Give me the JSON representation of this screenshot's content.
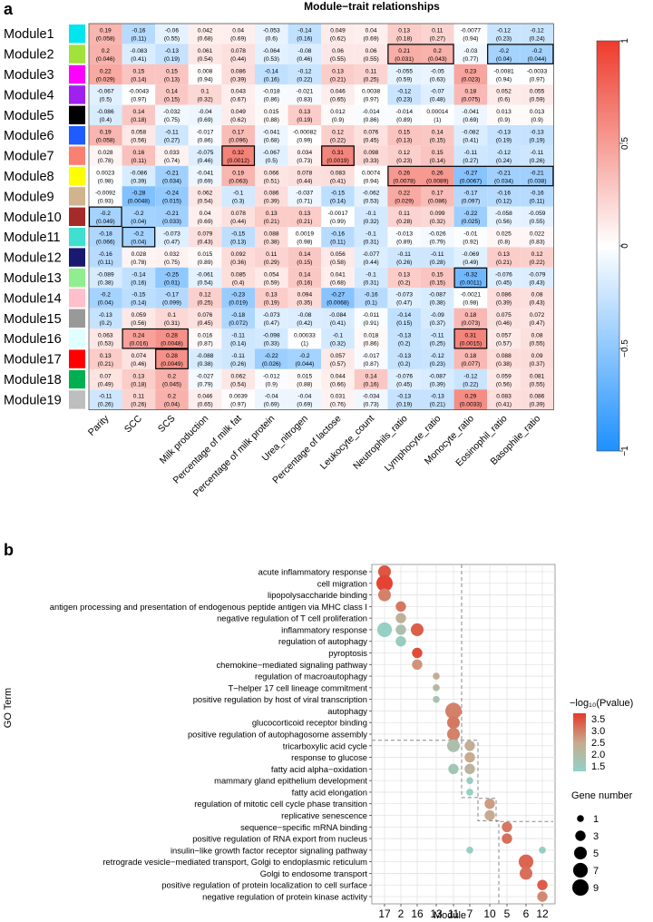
{
  "chart_data": [
    {
      "type": "heatmap",
      "panel_label": "a",
      "title": "Module−trait relationships",
      "rows": [
        "Module1",
        "Module2",
        "Module3",
        "Module4",
        "Module5",
        "Module6",
        "Module7",
        "Module8",
        "Module9",
        "Module10",
        "Module11",
        "Module12",
        "Module13",
        "Module14",
        "Module15",
        "Module16",
        "Module17",
        "Module18",
        "Module19"
      ],
      "row_colors": [
        "#00e5ee",
        "#a2e23a",
        "#ff00ff",
        "#a020f0",
        "#000000",
        "#1e5cff",
        "#fa8072",
        "#ffff00",
        "#d2b48c",
        "#a52a2a",
        "#40e0d0",
        "#191970",
        "#90ee90",
        "#ffc0cb",
        "#999999",
        "#e0ffff",
        "#ff0000",
        "#00b050",
        "#bebebe"
      ],
      "columns": [
        "Parity",
        "SCC",
        "SCS",
        "Milk production",
        "Percentage of milk fat",
        "Percentage of milk protein",
        "Urea_nitrogen",
        "Percentage of lactose",
        "Leukocyte_count",
        "Neutrophils_ratio",
        "Lymphocyte_ratio",
        "Monocyte_ratio",
        "Eosinophil_ratio",
        "Basophile_ratio"
      ],
      "values": [
        [
          "0.19",
          "-0.16",
          "-0.06",
          "0.042",
          "0.04",
          "-0.053",
          "-0.14",
          "0.049",
          "0.04",
          "0.13",
          "0.11",
          "-0.0077",
          "-0.12",
          "-0.12"
        ],
        [
          "0.2",
          "-0.083",
          "-0.13",
          "0.061",
          "0.078",
          "-0.064",
          "-0.08",
          "0.06",
          "0.06",
          "0.21",
          "0.2",
          "-0.03",
          "-0.2",
          "-0.2"
        ],
        [
          "0.22",
          "0.15",
          "0.15",
          "0.008",
          "0.086",
          "-0.14",
          "-0.12",
          "0.13",
          "0.11",
          "-0.055",
          "-0.05",
          "0.23",
          "-0.0081",
          "-0.0033"
        ],
        [
          "-0.067",
          "-0.0043",
          "0.14",
          "0.1",
          "0.043",
          "-0.018",
          "-0.021",
          "0.046",
          "0.0038",
          "-0.12",
          "-0.07",
          "0.18",
          "0.052",
          "0.055"
        ],
        [
          "-0.086",
          "0.14",
          "-0.032",
          "-0.04",
          "0.049",
          "0.015",
          "0.13",
          "0.012",
          "-0.014",
          "-0.014",
          "0.00014",
          "-0.041",
          "0.013",
          "0.013"
        ],
        [
          "0.19",
          "0.058",
          "-0.11",
          "-0.017",
          "0.17",
          "-0.041",
          "-0.00082",
          "0.12",
          "0.076",
          "0.15",
          "0.14",
          "-0.082",
          "-0.13",
          "-0.13"
        ],
        [
          "0.028",
          "0.16",
          "0.033",
          "-0.075",
          "0.32",
          "-0.067",
          "0.034",
          "0.31",
          "0.098",
          "0.12",
          "0.15",
          "-0.11",
          "-0.12",
          "-0.11"
        ],
        [
          "0.0023",
          "-0.086",
          "-0.21",
          "-0.041",
          "0.19",
          "0.066",
          "0.078",
          "0.083",
          "0.0074",
          "0.26",
          "0.26",
          "-0.27",
          "-0.21",
          "-0.21"
        ],
        [
          "-0.0092",
          "-0.28",
          "-0.24",
          "0.062",
          "-0.1",
          "0.086",
          "-0.037",
          "-0.15",
          "-0.062",
          "0.22",
          "0.17",
          "-0.17",
          "-0.16",
          "-0.16"
        ],
        [
          "-0.2",
          "-0.2",
          "-0.21",
          "0.04",
          "0.078",
          "0.13",
          "0.13",
          "-0.0017",
          "-0.1",
          "0.11",
          "0.099",
          "-0.22",
          "-0.058",
          "-0.059"
        ],
        [
          "-0.18",
          "-0.2",
          "-0.073",
          "0.079",
          "-0.15",
          "0.088",
          "0.0019",
          "-0.16",
          "-0.1",
          "-0.013",
          "-0.026",
          "-0.01",
          "0.025",
          "0.022"
        ],
        [
          "-0.16",
          "0.028",
          "0.032",
          "0.015",
          "0.092",
          "0.11",
          "0.14",
          "0.056",
          "-0.077",
          "-0.11",
          "-0.11",
          "-0.069",
          "0.13",
          "0.12"
        ],
        [
          "-0.089",
          "-0.14",
          "-0.25",
          "-0.061",
          "0.085",
          "0.054",
          "0.14",
          "0.041",
          "-0.1",
          "0.13",
          "0.15",
          "-0.32",
          "-0.076",
          "-0.079"
        ],
        [
          "-0.2",
          "-0.15",
          "-0.17",
          "0.12",
          "-0.23",
          "0.13",
          "0.094",
          "-0.27",
          "-0.16",
          "-0.073",
          "-0.087",
          "-0.0021",
          "0.086",
          "0.08"
        ],
        [
          "-0.13",
          "0.059",
          "0.1",
          "0.076",
          "-0.18",
          "-0.073",
          "-0.08",
          "-0.084",
          "-0.011",
          "-0.14",
          "-0.09",
          "0.18",
          "0.075",
          "0.072"
        ],
        [
          "0.063",
          "0.24",
          "0.28",
          "0.016",
          "-0.11",
          "-0.098",
          "0.00033",
          "-0.1",
          "0.018",
          "-0.13",
          "-0.11",
          "0.31",
          "0.057",
          "0.08"
        ],
        [
          "0.13",
          "0.074",
          "0.28",
          "-0.088",
          "-0.11",
          "-0.22",
          "-0.2",
          "0.057",
          "-0.017",
          "-0.13",
          "-0.12",
          "0.18",
          "0.088",
          "0.09"
        ],
        [
          "0.07",
          "0.13",
          "0.2",
          "-0.027",
          "0.062",
          "-0.012",
          "0.015",
          "0.044",
          "0.14",
          "-0.076",
          "-0.087",
          "-0.12",
          "0.059",
          "0.081"
        ],
        [
          "-0.11",
          "0.11",
          "0.2",
          "0.046",
          "0.0039",
          "-0.04",
          "-0.04",
          "0.031",
          "-0.034",
          "-0.13",
          "-0.13",
          "0.29",
          "0.083",
          "0.086"
        ]
      ],
      "pvalues": [
        [
          "(0.058)",
          "(0.11)",
          "(0.55)",
          "(0.68)",
          "(0.69)",
          "(0.6)",
          "(0.16)",
          "(0.62)",
          "(0.69)",
          "(0.18)",
          "(0.27)",
          "(0.94)",
          "(0.23)",
          "(0.24)"
        ],
        [
          "(0.046)",
          "(0.41)",
          "(0.19)",
          "(0.54)",
          "(0.44)",
          "(0.53)",
          "(0.46)",
          "(0.55)",
          "(0.55)",
          "(0.031)",
          "(0.043)",
          "(0.77)",
          "(0.04)",
          "(0.044)"
        ],
        [
          "(0.029)",
          "(0.14)",
          "(0.13)",
          "(0.94)",
          "(0.39)",
          "(0.16)",
          "(0.22)",
          "(0.21)",
          "(0.25)",
          "(0.59)",
          "(0.63)",
          "(0.023)",
          "(0.94)",
          "(0.97)"
        ],
        [
          "(0.5)",
          "(0.97)",
          "(0.15)",
          "(0.32)",
          "(0.67)",
          "(0.86)",
          "(0.83)",
          "(0.65)",
          "(0.97)",
          "(0.23)",
          "(0.48)",
          "(0.075)",
          "(0.6)",
          "(0.59)"
        ],
        [
          "(0.4)",
          "(0.18)",
          "(0.75)",
          "(0.69)",
          "(0.62)",
          "(0.88)",
          "(0.19)",
          "(0.9)",
          "(0.86)",
          "(0.89)",
          "(1)",
          "(0.69)",
          "(0.9)",
          "(0.9)"
        ],
        [
          "(0.058)",
          "(0.56)",
          "(0.27)",
          "(0.86)",
          "(0.096)",
          "(0.68)",
          "(0.99)",
          "(0.22)",
          "(0.45)",
          "(0.13)",
          "(0.15)",
          "(0.41)",
          "(0.19)",
          "(0.19)"
        ],
        [
          "(0.78)",
          "(0.11)",
          "(0.74)",
          "(0.46)",
          "(0.0012)",
          "(0.5)",
          "(0.73)",
          "(0.0019)",
          "(0.33)",
          "(0.23)",
          "(0.14)",
          "(0.27)",
          "(0.24)",
          "(0.26)"
        ],
        [
          "(0.98)",
          "(0.39)",
          "(0.034)",
          "(0.69)",
          "(0.063)",
          "(0.51)",
          "(0.44)",
          "(0.41)",
          "(0.94)",
          "(0.0078)",
          "(0.0089)",
          "(0.0067)",
          "(0.034)",
          "(0.038)"
        ],
        [
          "(0.93)",
          "(0.0048)",
          "(0.015)",
          "(0.54)",
          "(0.3)",
          "(0.39)",
          "(0.71)",
          "(0.14)",
          "(0.53)",
          "(0.029)",
          "(0.086)",
          "(0.097)",
          "(0.12)",
          "(0.11)"
        ],
        [
          "(0.049)",
          "(0.04)",
          "(0.033)",
          "(0.69)",
          "(0.44)",
          "(0.21)",
          "(0.21)",
          "(0.99)",
          "(0.32)",
          "(0.28)",
          "(0.32)",
          "(0.025)",
          "(0.56)",
          "(0.55)"
        ],
        [
          "(0.066)",
          "(0.04)",
          "(0.47)",
          "(0.43)",
          "(0.13)",
          "(0.38)",
          "(0.98)",
          "(0.11)",
          "(0.31)",
          "(0.89)",
          "(0.79)",
          "(0.92)",
          "(0.8)",
          "(0.83)"
        ],
        [
          "(0.11)",
          "(0.78)",
          "(0.75)",
          "(0.89)",
          "(0.36)",
          "(0.29)",
          "(0.15)",
          "(0.58)",
          "(0.44)",
          "(0.26)",
          "(0.28)",
          "(0.49)",
          "(0.21)",
          "(0.22)"
        ],
        [
          "(0.38)",
          "(0.16)",
          "(0.01)",
          "(0.54)",
          "(0.4)",
          "(0.59)",
          "(0.16)",
          "(0.68)",
          "(0.31)",
          "(0.2)",
          "(0.15)",
          "(0.0011)",
          "(0.45)",
          "(0.43)"
        ],
        [
          "(0.04)",
          "(0.14)",
          "(0.099)",
          "(0.25)",
          "(0.019)",
          "(0.19)",
          "(0.35)",
          "(0.0068)",
          "(0.1)",
          "(0.47)",
          "(0.38)",
          "(0.98)",
          "(0.39)",
          "(0.43)"
        ],
        [
          "(0.2)",
          "(0.56)",
          "(0.31)",
          "(0.45)",
          "(0.072)",
          "(0.47)",
          "(0.42)",
          "(0.41)",
          "(0.91)",
          "(0.15)",
          "(0.37)",
          "(0.073)",
          "(0.46)",
          "(0.47)"
        ],
        [
          "(0.53)",
          "(0.016)",
          "(0.0048)",
          "(0.87)",
          "(0.14)",
          "(0.33)",
          "(1)",
          "(0.32)",
          "(0.86)",
          "(0.2)",
          "(0.25)",
          "(0.0015)",
          "(0.57)",
          "(0.55)"
        ],
        [
          "(0.21)",
          "(0.46)",
          "(0.0049)",
          "(0.38)",
          "(0.26)",
          "(0.026)",
          "(0.044)",
          "(0.57)",
          "(0.87)",
          "(0.2)",
          "(0.23)",
          "(0.077)",
          "(0.38)",
          "(0.37)"
        ],
        [
          "(0.49)",
          "(0.18)",
          "(0.045)",
          "(0.79)",
          "(0.54)",
          "(0.9)",
          "(0.88)",
          "(0.66)",
          "(0.16)",
          "(0.45)",
          "(0.39)",
          "(0.22)",
          "(0.56)",
          "(0.55)"
        ],
        [
          "(0.26)",
          "(0.26)",
          "(0.04)",
          "(0.65)",
          "(0.97)",
          "(0.69)",
          "(0.69)",
          "(0.76)",
          "(0.73)",
          "(0.19)",
          "(0.21)",
          "(0.0033)",
          "(0.41)",
          "(0.39)"
        ]
      ],
      "highlight_groups": [
        {
          "row": 1,
          "col_from": 9,
          "col_to": 10
        },
        {
          "row": 1,
          "col_from": 12,
          "col_to": 13
        },
        {
          "row": 6,
          "col_from": 4,
          "col_to": 4
        },
        {
          "row": 6,
          "col_from": 7,
          "col_to": 7
        },
        {
          "row": 7,
          "col_from": 9,
          "col_to": 13
        },
        {
          "row": 9,
          "col_from": 0,
          "col_to": 0
        },
        {
          "row": 10,
          "col_from": 1,
          "col_to": 1
        },
        {
          "row": 12,
          "col_from": 11,
          "col_to": 11
        },
        {
          "row": 15,
          "col_from": 1,
          "col_to": 2
        },
        {
          "row": 15,
          "col_from": 11,
          "col_to": 11
        },
        {
          "row": 16,
          "col_from": 2,
          "col_to": 2
        }
      ],
      "colorbar": {
        "range": [
          -1,
          1
        ],
        "ticks": [
          "1",
          "0.5",
          "0",
          "−0.5",
          "−1"
        ],
        "low_color": "#1e90ff",
        "mid_color": "#ffffff",
        "high_color": "#ee3b2c"
      }
    },
    {
      "type": "scatter",
      "subtype": "dotplot",
      "panel_label": "b",
      "ylabel": "GO Term",
      "xlabel": "Module",
      "modules": [
        "17",
        "2",
        "16",
        "13",
        "11",
        "7",
        "10",
        "5",
        "6",
        "12"
      ],
      "terms": [
        "acute inflammatory response",
        "cell migration",
        "lipopolysaccharide binding",
        "antigen processing and presentation of endogenous peptide antigen via MHC class I",
        "negative regulation of T cell proliferation",
        "inflammatory response",
        "regulation of autophagy",
        "pyroptosis",
        "chemokine−mediated signaling pathway",
        "regulation of macroautophagy",
        "T−helper 17 cell lineage commitment",
        "positive regulation by host of viral transcription",
        "autophagy",
        "glucocorticoid receptor binding",
        "positive regulation of autophagosome assembly",
        "tricarboxylic acid cycle",
        "response to glucose",
        "fatty acid alpha−oxidation",
        "mammary gland epithelium development",
        "fatty acid elongation",
        "regulation of mitotic cell cycle phase transition",
        "replicative senescence",
        "sequence−specific mRNA binding",
        "positive regulation of RNA export from nucleus",
        "insulin−like growth factor receptor signaling pathway",
        "retrograde vesicle−mediated transport, Golgi to endoplasmic reticulum",
        "Golgi to endosome transport",
        "positive regulation of protein localization to cell surface",
        "negative regulation of protein kinase activity"
      ],
      "points": [
        {
          "term": 0,
          "module": "17",
          "log10p": 3.6,
          "genes": 5
        },
        {
          "term": 1,
          "module": "17",
          "log10p": 3.8,
          "genes": 9
        },
        {
          "term": 2,
          "module": "17",
          "log10p": 3.1,
          "genes": 5
        },
        {
          "term": 3,
          "module": "2",
          "log10p": 3.2,
          "genes": 3
        },
        {
          "term": 4,
          "module": "2",
          "log10p": 2.4,
          "genes": 3
        },
        {
          "term": 5,
          "module": "17",
          "log10p": 1.5,
          "genes": 7
        },
        {
          "term": 5,
          "module": "2",
          "log10p": 2.0,
          "genes": 3
        },
        {
          "term": 5,
          "module": "16",
          "log10p": 3.5,
          "genes": 5
        },
        {
          "term": 6,
          "module": "2",
          "log10p": 1.6,
          "genes": 3
        },
        {
          "term": 7,
          "module": "16",
          "log10p": 3.7,
          "genes": 3
        },
        {
          "term": 8,
          "module": "16",
          "log10p": 2.9,
          "genes": 3
        },
        {
          "term": 9,
          "module": "13",
          "log10p": 2.5,
          "genes": 1
        },
        {
          "term": 10,
          "module": "13",
          "log10p": 2.2,
          "genes": 1
        },
        {
          "term": 11,
          "module": "13",
          "log10p": 1.9,
          "genes": 1
        },
        {
          "term": 12,
          "module": "11",
          "log10p": 3.1,
          "genes": 9
        },
        {
          "term": 13,
          "module": "11",
          "log10p": 3.2,
          "genes": 5
        },
        {
          "term": 14,
          "module": "11",
          "log10p": 3.1,
          "genes": 5
        },
        {
          "term": 15,
          "module": "11",
          "log10p": 2.0,
          "genes": 5
        },
        {
          "term": 15,
          "module": "7",
          "log10p": 2.5,
          "genes": 3
        },
        {
          "term": 16,
          "module": "7",
          "log10p": 2.6,
          "genes": 3
        },
        {
          "term": 17,
          "module": "11",
          "log10p": 1.8,
          "genes": 3
        },
        {
          "term": 17,
          "module": "7",
          "log10p": 2.3,
          "genes": 3
        },
        {
          "term": 18,
          "module": "7",
          "log10p": 1.6,
          "genes": 1
        },
        {
          "term": 19,
          "module": "7",
          "log10p": 1.5,
          "genes": 1
        },
        {
          "term": 20,
          "module": "10",
          "log10p": 2.8,
          "genes": 3
        },
        {
          "term": 21,
          "module": "10",
          "log10p": 2.6,
          "genes": 3
        },
        {
          "term": 22,
          "module": "5",
          "log10p": 3.2,
          "genes": 3
        },
        {
          "term": 23,
          "module": "5",
          "log10p": 3.3,
          "genes": 3
        },
        {
          "term": 24,
          "module": "7",
          "log10p": 1.5,
          "genes": 1
        },
        {
          "term": 24,
          "module": "12",
          "log10p": 1.6,
          "genes": 1
        },
        {
          "term": 25,
          "module": "6",
          "log10p": 3.4,
          "genes": 7
        },
        {
          "term": 26,
          "module": "6",
          "log10p": 3.3,
          "genes": 5
        },
        {
          "term": 27,
          "module": "12",
          "log10p": 3.5,
          "genes": 3
        },
        {
          "term": 28,
          "module": "12",
          "log10p": 3.0,
          "genes": 3
        }
      ],
      "color_legend": {
        "title": "−log₁₀(Pvalue)",
        "ticks": [
          "3.5",
          "3.0",
          "2.5",
          "2.0",
          "1.5"
        ],
        "range": [
          1.4,
          3.9
        ],
        "low_color": "#8fd3c8",
        "high_color": "#e53a2a"
      },
      "size_legend": {
        "title": "Gene number",
        "ticks": [
          "1",
          "3",
          "5",
          "7",
          "9"
        ]
      }
    }
  ]
}
